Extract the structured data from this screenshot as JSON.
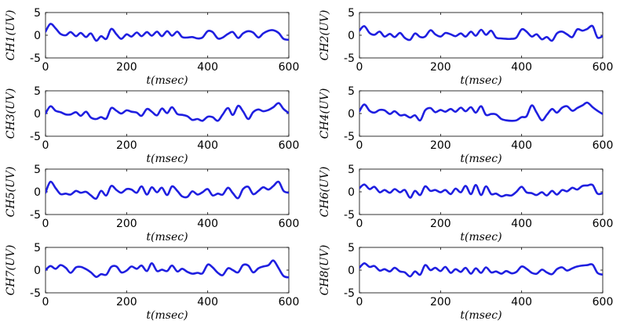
{
  "chart_data": [
    {
      "type": "line",
      "ylabel": "CH1(UV)",
      "xlabel": "t(msec)",
      "xlim": [
        0,
        600
      ],
      "ylim": [
        -5,
        5
      ],
      "xticks": [
        "0",
        "200",
        "400",
        "600"
      ],
      "yticks": [
        "5",
        "0",
        "-5"
      ],
      "x": [
        0,
        12,
        25,
        37,
        50,
        62,
        75,
        87,
        100,
        112,
        125,
        137,
        150,
        162,
        175,
        187,
        200,
        212,
        225,
        237,
        250,
        262,
        275,
        287,
        300,
        312,
        325,
        337,
        350,
        362,
        375,
        387,
        400,
        412,
        425,
        437,
        450,
        462,
        475,
        487,
        500,
        512,
        525,
        537,
        550,
        562,
        575,
        587,
        600
      ],
      "series": [
        {
          "values": [
            0.8,
            2.5,
            1.5,
            0.3,
            0,
            0.7,
            -0.2,
            0.5,
            -0.4,
            0.4,
            -1.2,
            -0.2,
            -0.8,
            1.4,
            0.2,
            -0.8,
            0.2,
            -0.3,
            0.6,
            -0.2,
            0.7,
            -0.1,
            0.8,
            -0.2,
            0.9,
            -0.1,
            0.8,
            -0.4,
            -0.5,
            -0.4,
            -0.7,
            -0.5,
            0.9,
            0.7,
            -0.7,
            -0.5,
            0.3,
            0.7,
            -0.6,
            0.4,
            0.9,
            0.6,
            -0.5,
            0.4,
            1,
            1.1,
            0.5,
            -0.8,
            -1
          ]
        }
      ]
    },
    {
      "type": "line",
      "ylabel": "CH2(UV)",
      "xlabel": "t(msec)",
      "xlim": [
        0,
        600
      ],
      "ylim": [
        -5,
        5
      ],
      "xticks": [
        "0",
        "200",
        "400",
        "600"
      ],
      "yticks": [
        "5",
        "0",
        "-5"
      ],
      "x": [
        0,
        12,
        25,
        37,
        50,
        62,
        75,
        87,
        100,
        112,
        125,
        137,
        150,
        162,
        175,
        187,
        200,
        212,
        225,
        237,
        250,
        262,
        275,
        287,
        300,
        312,
        325,
        337,
        350,
        362,
        375,
        387,
        400,
        412,
        425,
        437,
        450,
        462,
        475,
        487,
        500,
        512,
        525,
        537,
        550,
        562,
        575,
        587,
        600
      ],
      "series": [
        {
          "values": [
            1,
            2,
            0.5,
            0.1,
            0.8,
            -0.3,
            0.3,
            -0.4,
            0.5,
            -0.6,
            -1,
            0.4,
            -0.4,
            -0.3,
            1.1,
            0.2,
            -0.3,
            0.5,
            0.2,
            -0.2,
            0.4,
            -0.3,
            0.8,
            -0.1,
            1.2,
            0.1,
            1,
            -0.5,
            -0.7,
            -0.8,
            -0.8,
            -0.5,
            1.3,
            0.8,
            -0.3,
            0.2,
            -0.9,
            -0.4,
            -1.2,
            0.4,
            0.8,
            0.2,
            -0.4,
            1.3,
            1,
            1.4,
            2,
            -0.5,
            -0.2
          ]
        }
      ]
    },
    {
      "type": "line",
      "ylabel": "CH3(UV)",
      "xlabel": "t(msec)",
      "xlim": [
        0,
        600
      ],
      "ylim": [
        -5,
        5
      ],
      "xticks": [
        "0",
        "200",
        "400",
        "600"
      ],
      "yticks": [
        "5",
        "0",
        "-5"
      ],
      "x": [
        0,
        12,
        25,
        37,
        50,
        62,
        75,
        87,
        100,
        112,
        125,
        137,
        150,
        162,
        175,
        187,
        200,
        212,
        225,
        237,
        250,
        262,
        275,
        287,
        300,
        312,
        325,
        337,
        350,
        362,
        375,
        387,
        400,
        412,
        425,
        437,
        450,
        462,
        475,
        487,
        500,
        512,
        525,
        537,
        550,
        562,
        575,
        587,
        600
      ],
      "series": [
        {
          "values": [
            0,
            1.6,
            0.6,
            0.3,
            -0.2,
            -0.2,
            0.3,
            -0.5,
            0.4,
            -0.9,
            -1.2,
            -0.8,
            -1.1,
            1.2,
            0.6,
            0,
            0.7,
            0.4,
            0.2,
            -0.5,
            1,
            0.4,
            -0.4,
            1.1,
            0.1,
            1.4,
            -0.1,
            -0.3,
            -0.6,
            -1.4,
            -1.2,
            -1.6,
            -0.7,
            -0.8,
            -1.6,
            -0.2,
            1.2,
            -0.3,
            1.7,
            0.5,
            -1.2,
            0.3,
            0.9,
            0.5,
            0.8,
            1.4,
            2.3,
            1,
            0.1
          ]
        }
      ]
    },
    {
      "type": "line",
      "ylabel": "CH4(UV)",
      "xlabel": "t(msec)",
      "xlim": [
        0,
        600
      ],
      "ylim": [
        -5,
        5
      ],
      "xticks": [
        "0",
        "200",
        "400",
        "600"
      ],
      "yticks": [
        "5",
        "0",
        "-5"
      ],
      "x": [
        0,
        12,
        25,
        37,
        50,
        62,
        75,
        87,
        100,
        112,
        125,
        137,
        150,
        162,
        175,
        187,
        200,
        212,
        225,
        237,
        250,
        262,
        275,
        287,
        300,
        312,
        325,
        337,
        350,
        362,
        375,
        387,
        400,
        412,
        425,
        437,
        450,
        462,
        475,
        487,
        500,
        512,
        525,
        537,
        550,
        562,
        575,
        587,
        600
      ],
      "series": [
        {
          "values": [
            0.5,
            2,
            0.6,
            0.2,
            0.8,
            0.7,
            -0.1,
            0.5,
            -0.4,
            -0.3,
            -0.9,
            -0.4,
            -1.5,
            0.7,
            1.2,
            0.3,
            0.8,
            0.4,
            1,
            0.4,
            1.3,
            0.5,
            1.4,
            0.2,
            1.6,
            -0.3,
            -0.1,
            -0.2,
            -1.2,
            -1.5,
            -1.6,
            -1.5,
            -0.8,
            -0.6,
            1.8,
            0.2,
            -1.5,
            -0.3,
            1,
            0.2,
            1.3,
            1.6,
            0.6,
            1.2,
            1.8,
            2.4,
            1.4,
            0.6,
            -0.1
          ]
        }
      ]
    },
    {
      "type": "line",
      "ylabel": "CH5(UV)",
      "xlabel": "t(msec)",
      "xlim": [
        0,
        600
      ],
      "ylim": [
        -5,
        5
      ],
      "xticks": [
        "0",
        "200",
        "400",
        "600"
      ],
      "yticks": [
        "5",
        "0",
        "-5"
      ],
      "x": [
        0,
        12,
        25,
        37,
        50,
        62,
        75,
        87,
        100,
        112,
        125,
        137,
        150,
        162,
        175,
        187,
        200,
        212,
        225,
        237,
        250,
        262,
        275,
        287,
        300,
        312,
        325,
        337,
        350,
        362,
        375,
        387,
        400,
        412,
        425,
        437,
        450,
        462,
        475,
        487,
        500,
        512,
        525,
        537,
        550,
        562,
        575,
        587,
        600
      ],
      "series": [
        {
          "values": [
            -0.2,
            2.2,
            0.8,
            -0.5,
            -0.4,
            -0.6,
            0.2,
            -0.2,
            0,
            -0.8,
            -1.5,
            0.2,
            -0.8,
            1.3,
            0.4,
            -0.2,
            0.6,
            0.5,
            -0.2,
            1.2,
            -0.6,
            1,
            -0.1,
            0.9,
            -0.7,
            1.2,
            0.2,
            -1,
            -1.1,
            0.1,
            -0.6,
            -0.1,
            0.6,
            -0.8,
            -0.4,
            -0.6,
            0.9,
            -0.3,
            -1.4,
            0.6,
            1.1,
            -0.5,
            0.2,
            1,
            0.5,
            1.3,
            2.2,
            0.2,
            -0.2
          ]
        }
      ]
    },
    {
      "type": "line",
      "ylabel": "CH6(UV)",
      "xlabel": "t(msec)",
      "xlim": [
        0,
        600
      ],
      "ylim": [
        -5,
        5
      ],
      "xticks": [
        "0",
        "200",
        "400",
        "600"
      ],
      "yticks": [
        "5",
        "0",
        "-5"
      ],
      "x": [
        0,
        12,
        25,
        37,
        50,
        62,
        75,
        87,
        100,
        112,
        125,
        137,
        150,
        162,
        175,
        187,
        200,
        212,
        225,
        237,
        250,
        262,
        275,
        287,
        300,
        312,
        325,
        337,
        350,
        362,
        375,
        387,
        400,
        412,
        425,
        437,
        450,
        462,
        475,
        487,
        500,
        512,
        525,
        537,
        550,
        562,
        575,
        587,
        600
      ],
      "series": [
        {
          "values": [
            0.8,
            1.6,
            0.6,
            1.1,
            -0.1,
            0.4,
            -0.2,
            0.6,
            -0.1,
            0.4,
            -1.3,
            0.2,
            -0.7,
            1.2,
            0.2,
            0.4,
            -0.1,
            0.4,
            -0.5,
            0.7,
            -0.1,
            1.3,
            -0.5,
            1.5,
            -0.7,
            1.2,
            -0.5,
            -0.4,
            -1,
            -0.7,
            -0.8,
            0,
            1.1,
            -0.1,
            -0.3,
            -0.7,
            -0.1,
            -0.8,
            0.2,
            -0.6,
            0.4,
            0.1,
            0.9,
            0.5,
            1.3,
            1.4,
            1.5,
            -0.4,
            -0.3
          ]
        }
      ]
    },
    {
      "type": "line",
      "ylabel": "CH7(UV)",
      "xlabel": "t(msec)",
      "xlim": [
        0,
        600
      ],
      "ylim": [
        -5,
        5
      ],
      "xticks": [
        "0",
        "200",
        "400",
        "600"
      ],
      "yticks": [
        "5",
        "0",
        "-5"
      ],
      "x": [
        0,
        12,
        25,
        37,
        50,
        62,
        75,
        87,
        100,
        112,
        125,
        137,
        150,
        162,
        175,
        187,
        200,
        212,
        225,
        237,
        250,
        262,
        275,
        287,
        300,
        312,
        325,
        337,
        350,
        362,
        375,
        387,
        400,
        412,
        425,
        437,
        450,
        462,
        475,
        487,
        500,
        512,
        525,
        537,
        550,
        562,
        575,
        587,
        600
      ],
      "series": [
        {
          "values": [
            0,
            0.9,
            0.3,
            1.1,
            0.5,
            -0.6,
            0.6,
            0.7,
            0.2,
            -0.5,
            -1.5,
            -0.9,
            -1,
            0.7,
            0.8,
            -0.5,
            -0.1,
            0.8,
            0.3,
            1,
            -0.2,
            1.5,
            -0.2,
            0.1,
            -0.2,
            1,
            -0.3,
            0.3,
            -0.4,
            -0.8,
            -0.6,
            -0.7,
            1.2,
            0.6,
            -0.6,
            -1.1,
            0.4,
            0,
            -0.5,
            1.1,
            1,
            -0.5,
            0.4,
            0.8,
            1.1,
            2.1,
            0.4,
            -1.3,
            -1.6
          ]
        }
      ]
    },
    {
      "type": "line",
      "ylabel": "CH8(UV)",
      "xlabel": "t(msec)",
      "xlim": [
        0,
        600
      ],
      "ylim": [
        -5,
        5
      ],
      "xticks": [
        "0",
        "200",
        "400",
        "600"
      ],
      "yticks": [
        "5",
        "0",
        "-5"
      ],
      "x": [
        0,
        12,
        25,
        37,
        50,
        62,
        75,
        87,
        100,
        112,
        125,
        137,
        150,
        162,
        175,
        187,
        200,
        212,
        225,
        237,
        250,
        262,
        275,
        287,
        300,
        312,
        325,
        337,
        350,
        362,
        375,
        387,
        400,
        412,
        425,
        437,
        450,
        462,
        475,
        487,
        500,
        512,
        525,
        537,
        550,
        562,
        575,
        587,
        600
      ],
      "series": [
        {
          "values": [
            0.5,
            1.5,
            0.7,
            0.9,
            -0.1,
            0.2,
            -0.3,
            0.5,
            -0.3,
            -0.5,
            -1.4,
            -0.3,
            -1,
            1.1,
            0,
            0.5,
            -0.2,
            0.7,
            -0.6,
            0.2,
            -0.4,
            0.5,
            -0.8,
            0.4,
            -0.6,
            0.6,
            -0.5,
            -0.3,
            -0.8,
            -0.2,
            -0.7,
            -0.4,
            0.8,
            0.3,
            -0.6,
            -0.8,
            0.1,
            -0.5,
            -0.9,
            0.2,
            0.6,
            -0.1,
            0.4,
            0.8,
            1,
            1.1,
            1.2,
            -0.6,
            -1
          ]
        }
      ]
    }
  ]
}
